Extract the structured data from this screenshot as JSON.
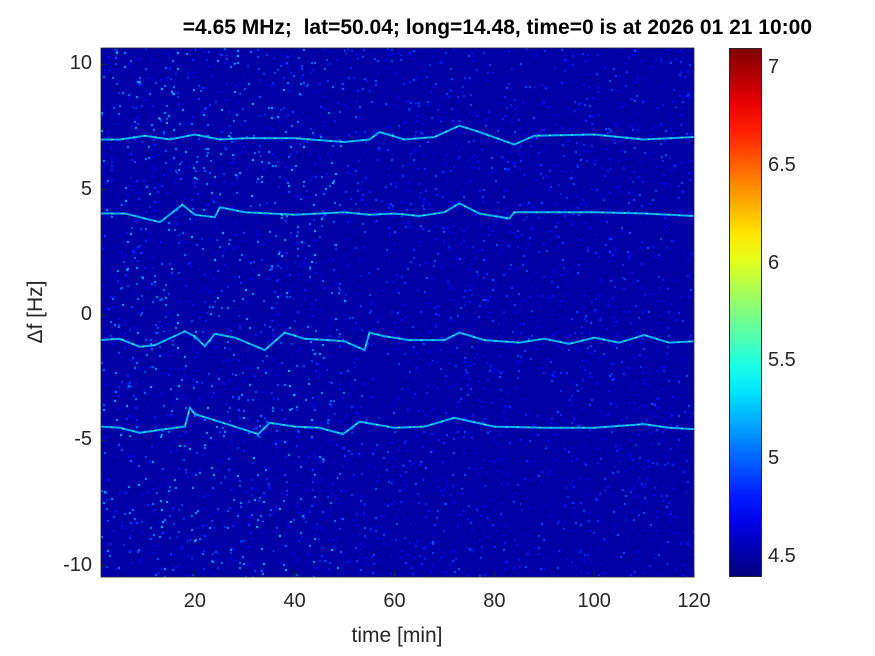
{
  "chart_data": {
    "type": "heatmap",
    "title": "=4.65 MHz;  lat=50.04; long=14.48, time=0 is at 2026 01 21 10:00",
    "xlabel": "time [min]",
    "ylabel": "Δf [Hz]",
    "xlim": [
      1.2,
      120
    ],
    "ylim": [
      -10.45,
      10.65
    ],
    "xticks": [
      "20",
      "40",
      "60",
      "80",
      "100",
      "120"
    ],
    "yticks": [
      "10",
      "5",
      "0",
      "-5",
      "-10"
    ],
    "colormap": "jet",
    "clim": [
      4.4,
      7.1
    ],
    "colorbar_ticks": [
      "7",
      "6.5",
      "6",
      "5.5",
      "5",
      "4.5"
    ],
    "background_level": 4.5,
    "traces": [
      {
        "t": [
          1,
          5,
          10,
          15,
          20,
          25,
          30,
          40,
          50,
          55,
          57,
          62,
          68,
          73,
          77,
          84,
          88,
          100,
          110,
          120
        ],
        "df": [
          7.0,
          7.0,
          7.15,
          7.0,
          7.2,
          7.0,
          7.05,
          7.05,
          6.9,
          7.0,
          7.3,
          7.0,
          7.1,
          7.55,
          7.3,
          6.8,
          7.15,
          7.2,
          7.0,
          7.1
        ]
      },
      {
        "t": [
          1,
          6,
          10,
          13,
          17.5,
          20,
          24,
          25,
          30,
          40,
          45,
          50,
          55,
          60,
          65,
          70,
          73,
          77,
          83,
          84,
          90,
          100,
          110,
          120
        ],
        "df": [
          4.05,
          4.05,
          3.85,
          3.7,
          4.4,
          4.0,
          3.9,
          4.3,
          4.1,
          4.0,
          4.05,
          4.1,
          4.0,
          4.05,
          3.95,
          4.1,
          4.45,
          4.05,
          3.85,
          4.1,
          4.1,
          4.1,
          4.05,
          3.95
        ]
      },
      {
        "t": [
          1,
          5,
          9,
          12,
          18,
          20,
          22,
          24,
          28,
          34,
          38,
          42,
          47,
          50,
          54,
          55,
          58,
          63,
          70,
          73,
          78,
          85,
          90,
          95,
          100,
          105,
          110,
          115,
          120
        ],
        "df": [
          -1.0,
          -0.95,
          -1.27,
          -1.2,
          -0.65,
          -0.85,
          -1.25,
          -0.75,
          -0.9,
          -1.4,
          -0.7,
          -0.95,
          -1.0,
          -1.05,
          -1.4,
          -0.7,
          -0.85,
          -1.0,
          -1.0,
          -0.7,
          -1.0,
          -1.1,
          -0.95,
          -1.15,
          -0.9,
          -1.1,
          -0.8,
          -1.1,
          -1.05
        ]
      },
      {
        "t": [
          1,
          5,
          9,
          14,
          18,
          19,
          20,
          24,
          28,
          32.7,
          35,
          40,
          45,
          49.7,
          53,
          60,
          66,
          72,
          80,
          90,
          100,
          110,
          115,
          120
        ],
        "df": [
          -4.45,
          -4.5,
          -4.7,
          -4.55,
          -4.45,
          -3.7,
          -3.95,
          -4.2,
          -4.45,
          -4.75,
          -4.3,
          -4.45,
          -4.5,
          -4.75,
          -4.25,
          -4.5,
          -4.45,
          -4.1,
          -4.45,
          -4.5,
          -4.5,
          -4.35,
          -4.5,
          -4.55
        ]
      }
    ]
  }
}
